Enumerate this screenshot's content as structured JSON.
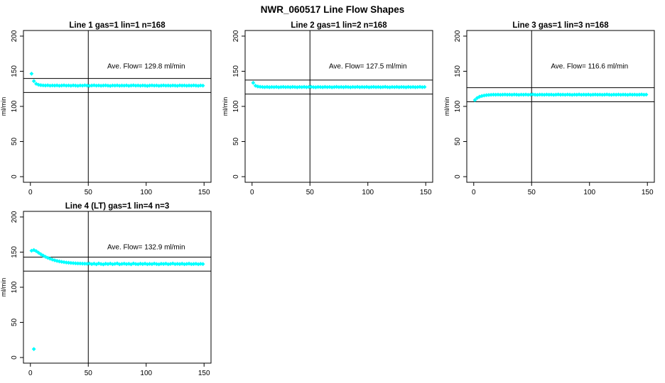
{
  "page": {
    "title": "NWR_060517  Line Flow Shapes"
  },
  "colors": {
    "marker": "#00ffff",
    "axis": "#000000",
    "background": "#ffffff"
  },
  "chart_data": [
    {
      "type": "scatter",
      "title": "Line 1 gas=1 lin=1 n=168",
      "annotation": "Ave. Flow=  129.8  ml/min",
      "ave_flow_ml_min": 129.8,
      "n": 168,
      "ylabel": "ml/min",
      "xlabel": "",
      "xlim": [
        0,
        150
      ],
      "ylim": [
        0,
        200
      ],
      "xticks": [
        0,
        50,
        100,
        150
      ],
      "yticks": [
        0,
        50,
        100,
        150,
        200
      ],
      "vline_x": 50,
      "hlines": [
        139.8,
        119.8
      ],
      "annotation_xy": [
        100,
        157
      ],
      "marker_color": "#00ffff",
      "points": {
        "x0": 1,
        "dx": 2,
        "y": [
          146.5,
          136.0,
          132.2,
          130.8,
          130.2,
          129.9,
          129.7,
          130.0,
          129.5,
          129.8,
          129.6,
          129.9,
          129.4,
          129.7,
          130.0,
          129.5,
          129.8,
          129.4,
          129.9,
          129.6,
          129.3,
          129.8,
          129.5,
          130.0,
          129.6,
          129.3,
          129.7,
          130.0,
          129.5,
          129.8,
          129.4,
          129.7,
          129.9,
          129.5,
          129.2,
          129.8,
          129.6,
          129.9,
          129.4,
          129.7,
          129.5,
          129.9,
          129.3,
          129.7,
          130.0,
          129.5,
          129.8,
          129.4,
          129.8,
          129.6,
          129.2,
          129.7,
          129.9,
          129.5,
          129.8,
          129.3,
          129.6,
          129.9,
          129.5,
          129.7,
          129.4,
          129.8,
          129.6,
          129.3,
          129.9,
          129.6,
          129.8,
          129.4,
          129.7,
          129.5,
          129.9,
          129.6,
          129.3,
          129.8,
          129.5
        ]
      },
      "extra_points": []
    },
    {
      "type": "scatter",
      "title": "Line 2 gas=1 lin=2 n=168",
      "annotation": "Ave. Flow=  127.5  ml/min",
      "ave_flow_ml_min": 127.5,
      "n": 168,
      "ylabel": "ml/min",
      "xlabel": "",
      "xlim": [
        0,
        150
      ],
      "ylim": [
        0,
        200
      ],
      "xticks": [
        0,
        50,
        100,
        150
      ],
      "yticks": [
        0,
        50,
        100,
        150,
        200
      ],
      "vline_x": 50,
      "hlines": [
        137.5,
        117.5
      ],
      "annotation_xy": [
        100,
        157
      ],
      "marker_color": "#00ffff",
      "points": {
        "x0": 1,
        "dx": 2,
        "y": [
          133.5,
          129.4,
          128.3,
          127.9,
          127.6,
          127.4,
          127.7,
          127.3,
          127.6,
          127.4,
          127.7,
          127.2,
          127.5,
          127.7,
          127.4,
          127.6,
          127.3,
          127.7,
          127.5,
          127.2,
          127.6,
          127.4,
          127.7,
          127.3,
          127.6,
          127.8,
          127.4,
          127.2,
          127.6,
          127.5,
          127.3,
          127.7,
          127.4,
          127.6,
          127.2,
          127.5,
          127.8,
          127.4,
          127.6,
          127.3,
          127.7,
          127.5,
          127.2,
          127.6,
          127.4,
          127.8,
          127.3,
          127.6,
          127.4,
          127.7,
          127.2,
          127.5,
          127.7,
          127.4,
          127.6,
          127.3,
          127.5,
          127.8,
          127.4,
          127.2,
          127.6,
          127.4,
          127.7,
          127.3,
          127.6,
          127.5,
          127.2,
          127.7,
          127.4,
          127.6,
          127.3,
          127.5,
          127.8,
          127.4,
          127.6
        ]
      },
      "extra_points": []
    },
    {
      "type": "scatter",
      "title": "Line 3 gas=1 lin=3 n=168",
      "annotation": "Ave. Flow=  116.6  ml/min",
      "ave_flow_ml_min": 116.6,
      "n": 168,
      "ylabel": "ml/min",
      "xlabel": "",
      "xlim": [
        0,
        150
      ],
      "ylim": [
        0,
        200
      ],
      "xticks": [
        0,
        50,
        100,
        150
      ],
      "yticks": [
        0,
        50,
        100,
        150,
        200
      ],
      "vline_x": 50,
      "hlines": [
        126.6,
        106.6
      ],
      "annotation_xy": [
        100,
        157
      ],
      "marker_color": "#00ffff",
      "points": {
        "x0": 1,
        "dx": 2,
        "y": [
          109.0,
          112.0,
          113.8,
          114.8,
          115.5,
          116.0,
          116.3,
          116.5,
          116.7,
          116.6,
          116.8,
          116.5,
          116.7,
          116.9,
          116.6,
          116.8,
          116.5,
          116.9,
          116.7,
          116.4,
          116.8,
          116.6,
          116.9,
          116.5,
          116.8,
          117.0,
          116.6,
          116.4,
          116.8,
          116.7,
          116.5,
          116.9,
          116.6,
          116.8,
          116.4,
          116.7,
          117.0,
          116.6,
          116.8,
          116.5,
          116.9,
          116.7,
          116.4,
          116.8,
          116.6,
          117.0,
          116.5,
          116.8,
          116.6,
          116.9,
          116.4,
          116.7,
          116.9,
          116.6,
          116.8,
          116.5,
          116.7,
          117.0,
          116.6,
          116.4,
          116.8,
          116.6,
          116.9,
          116.5,
          116.8,
          116.7,
          116.4,
          116.9,
          116.6,
          116.8,
          116.5,
          116.7,
          117.0,
          116.6,
          116.8
        ]
      },
      "extra_points": []
    },
    {
      "type": "scatter",
      "title": "Line 4 (LT) gas=1 lin=4 n=3",
      "annotation": "Ave. Flow=  132.9  ml/min",
      "ave_flow_ml_min": 132.9,
      "n": 3,
      "ylabel": "ml/min",
      "xlabel": "",
      "xlim": [
        0,
        150
      ],
      "ylim": [
        0,
        200
      ],
      "xticks": [
        0,
        50,
        100,
        150
      ],
      "yticks": [
        0,
        50,
        100,
        150,
        200
      ],
      "vline_x": 50,
      "hlines": [
        142.9,
        122.9
      ],
      "annotation_xy": [
        100,
        157
      ],
      "marker_color": "#00ffff",
      "points": {
        "x0": 1,
        "dx": 2,
        "y": [
          152.0,
          153.0,
          151.5,
          149.2,
          147.0,
          145.1,
          143.4,
          141.9,
          140.6,
          139.4,
          138.4,
          137.5,
          136.8,
          136.2,
          135.7,
          135.2,
          134.9,
          134.6,
          134.3,
          134.1,
          133.9,
          133.8,
          133.6,
          133.5,
          133.4,
          133.8,
          132.9,
          133.6,
          132.7,
          133.9,
          133.1,
          132.6,
          133.5,
          133.0,
          133.7,
          132.8,
          133.3,
          133.9,
          132.7,
          133.2,
          133.6,
          132.9,
          133.4,
          132.7,
          133.8,
          133.1,
          132.8,
          133.5,
          133.0,
          133.6,
          132.8,
          133.3,
          132.9,
          133.7,
          133.0,
          132.7,
          133.4,
          133.1,
          133.6,
          132.8,
          133.2,
          133.8,
          132.9,
          133.3,
          133.0,
          133.5,
          132.8,
          133.2,
          133.6,
          132.9,
          133.1,
          133.4,
          132.8,
          133.3,
          133.0
        ]
      },
      "extra_points": [
        [
          3,
          12
        ]
      ]
    }
  ]
}
